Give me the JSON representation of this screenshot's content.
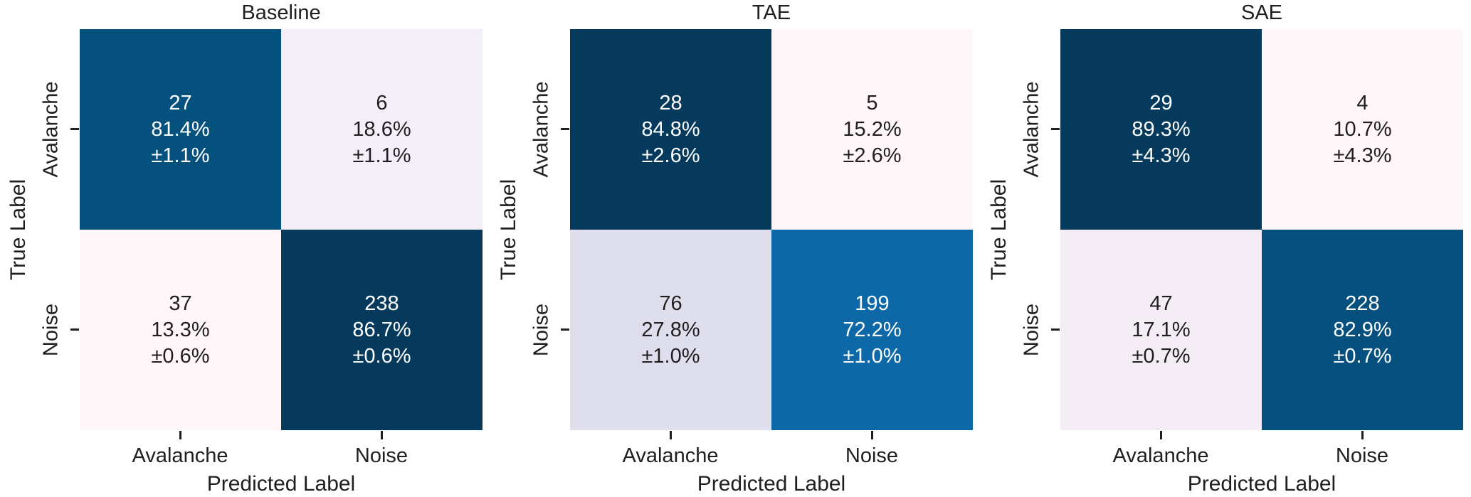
{
  "figure": {
    "background": "#ffffff",
    "text_color": "#1f1f1f",
    "colormap": "PuBu (light pink-lavender to dark navy blue)"
  },
  "chart_data": [
    {
      "type": "heatmap",
      "title": "Baseline",
      "xlabel": "Predicted Label",
      "ylabel": "True Label",
      "x_tick_labels": [
        "Avalanche",
        "Noise"
      ],
      "y_tick_labels": [
        "Avalanche",
        "Noise"
      ],
      "counts": [
        [
          27,
          6
        ],
        [
          37,
          238
        ]
      ],
      "row_percent": [
        [
          81.4,
          18.6
        ],
        [
          13.3,
          86.7
        ]
      ],
      "uncertainty_percent": [
        [
          1.1,
          1.1
        ],
        [
          0.6,
          0.6
        ]
      ],
      "cells": [
        [
          {
            "count": "27",
            "percent": "81.4%",
            "pm": "±1.1%",
            "bg": "#05517e",
            "fg": "#ffffff"
          },
          {
            "count": "6",
            "percent": "18.6%",
            "pm": "±1.1%",
            "bg": "#f3eef7",
            "fg": "#1f1f1f"
          }
        ],
        [
          {
            "count": "37",
            "percent": "13.3%",
            "pm": "±0.6%",
            "bg": "#fff6fa",
            "fg": "#1f1f1f"
          },
          {
            "count": "238",
            "percent": "86.7%",
            "pm": "±0.6%",
            "bg": "#063a5c",
            "fg": "#ffffff"
          }
        ]
      ]
    },
    {
      "type": "heatmap",
      "title": "TAE",
      "xlabel": "Predicted Label",
      "ylabel": "True Label",
      "x_tick_labels": [
        "Avalanche",
        "Noise"
      ],
      "y_tick_labels": [
        "Avalanche",
        "Noise"
      ],
      "counts": [
        [
          28,
          5
        ],
        [
          76,
          199
        ]
      ],
      "row_percent": [
        [
          84.8,
          15.2
        ],
        [
          27.8,
          72.2
        ]
      ],
      "uncertainty_percent": [
        [
          2.6,
          2.6
        ],
        [
          1.0,
          1.0
        ]
      ],
      "cells": [
        [
          {
            "count": "28",
            "percent": "84.8%",
            "pm": "±2.6%",
            "bg": "#063a5c",
            "fg": "#ffffff"
          },
          {
            "count": "5",
            "percent": "15.2%",
            "pm": "±2.6%",
            "bg": "#fff6fa",
            "fg": "#1f1f1f"
          }
        ],
        [
          {
            "count": "76",
            "percent": "27.8%",
            "pm": "±1.0%",
            "bg": "#dfdeec",
            "fg": "#1f1f1f"
          },
          {
            "count": "199",
            "percent": "72.2%",
            "pm": "±1.0%",
            "bg": "#0d68a8",
            "fg": "#ffffff"
          }
        ]
      ]
    },
    {
      "type": "heatmap",
      "title": "SAE",
      "xlabel": "Predicted Label",
      "ylabel": "True Label",
      "x_tick_labels": [
        "Avalanche",
        "Noise"
      ],
      "y_tick_labels": [
        "Avalanche",
        "Noise"
      ],
      "counts": [
        [
          29,
          4
        ],
        [
          47,
          228
        ]
      ],
      "row_percent": [
        [
          89.3,
          10.7
        ],
        [
          17.1,
          82.9
        ]
      ],
      "uncertainty_percent": [
        [
          4.3,
          4.3
        ],
        [
          0.7,
          0.7
        ]
      ],
      "cells": [
        [
          {
            "count": "29",
            "percent": "89.3%",
            "pm": "±4.3%",
            "bg": "#063a5c",
            "fg": "#ffffff"
          },
          {
            "count": "4",
            "percent": "10.7%",
            "pm": "±4.3%",
            "bg": "#fff6fa",
            "fg": "#1f1f1f"
          }
        ],
        [
          {
            "count": "47",
            "percent": "17.1%",
            "pm": "±0.7%",
            "bg": "#f4edf5",
            "fg": "#1f1f1f"
          },
          {
            "count": "228",
            "percent": "82.9%",
            "pm": "±0.7%",
            "bg": "#05507e",
            "fg": "#ffffff"
          }
        ]
      ]
    }
  ]
}
